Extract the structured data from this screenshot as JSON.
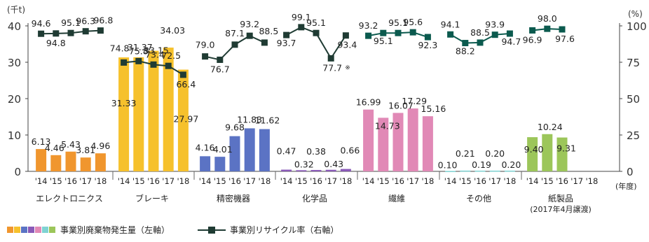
{
  "chart_data": {
    "type": "bar",
    "left_unit": "(千t)",
    "right_unit": "(%)",
    "left_ticks": [
      0,
      10,
      20,
      30,
      40
    ],
    "right_ticks": [
      0,
      25,
      50,
      75,
      100
    ],
    "ylim_left": [
      0,
      40
    ],
    "ylim_right": [
      0,
      100
    ],
    "x_unit": "(年度)",
    "years": [
      "'14",
      "'15",
      "'16",
      "'17",
      "'18"
    ],
    "groups": [
      {
        "name": "エレクトロニクス",
        "color": "#f0962e",
        "line_color": "#1f3b33",
        "waste": [
          6.13,
          4.46,
          5.43,
          3.81,
          4.96
        ],
        "recycle": [
          94.6,
          94.8,
          95.1,
          96.3,
          96.8
        ]
      },
      {
        "name": "ブレーキ",
        "color": "#f6c12c",
        "line_color": "#1f3b33",
        "waste": [
          31.33,
          31.37,
          33.15,
          34.03,
          27.97
        ],
        "recycle": [
          74.8,
          75.8,
          73.4,
          72.5,
          66.4
        ]
      },
      {
        "name": "精密機器",
        "color": "#5b73c4",
        "line_color": "#1f3b33",
        "waste": [
          4.16,
          4.01,
          9.68,
          11.83,
          11.62
        ],
        "recycle": [
          79.0,
          76.7,
          87.1,
          93.2,
          88.5
        ]
      },
      {
        "name": "化学品",
        "color": "#8a5ab8",
        "line_color": "#1f3b33",
        "waste": [
          0.47,
          0.32,
          0.38,
          0.43,
          0.66
        ],
        "recycle": [
          93.7,
          99.1,
          95.1,
          77.7,
          93.4
        ],
        "recycle_note": "※"
      },
      {
        "name": "繊維",
        "color": "#e189b6",
        "line_color": "#0b5a4e",
        "waste": [
          16.99,
          14.73,
          16.07,
          17.29,
          15.16
        ],
        "recycle": [
          93.2,
          95.1,
          95.1,
          95.6,
          92.3
        ]
      },
      {
        "name": "その他",
        "color": "#7fd3d3",
        "line_color": "#0b5a4e",
        "waste": [
          0.1,
          0.21,
          0.19,
          0.2,
          0.2
        ],
        "recycle": [
          94.1,
          88.2,
          88.5,
          93.9,
          94.7
        ]
      },
      {
        "name": "紙製品",
        "note": "(2017年4月譲渡)",
        "color": "#9cc65a",
        "line_color": "#0b5a4e",
        "waste": [
          9.4,
          10.24,
          9.31,
          null,
          null
        ],
        "recycle": [
          96.9,
          98.0,
          97.6,
          null,
          null
        ]
      }
    ],
    "legend": {
      "bars_label": "事業別廃棄物発生量（左軸）",
      "line_label": "事業別リサイクル率（右軸）",
      "swatches": [
        "#f0962e",
        "#f6c12c",
        "#5b73c4",
        "#8a5ab8",
        "#e189b6",
        "#7fd3d3",
        "#9cc65a"
      ]
    }
  }
}
